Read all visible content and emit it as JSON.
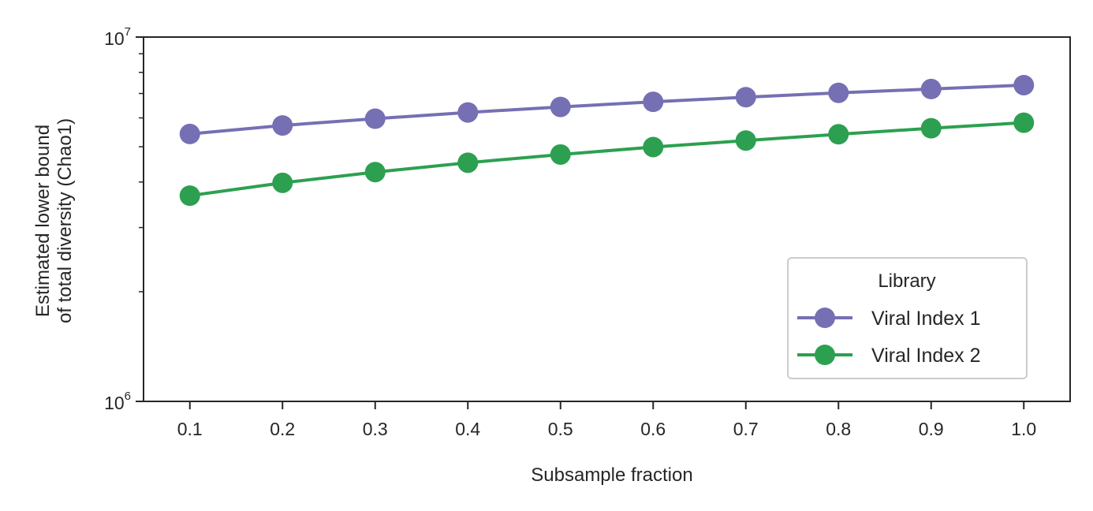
{
  "chart_data": {
    "type": "line",
    "title": "",
    "xlabel": "Subsample fraction",
    "ylabel_line1": "Estimated lower bound",
    "ylabel_line2": "of total diversity (Chao1)",
    "yscale": "log",
    "ylim": [
      1000000,
      10000000
    ],
    "xlim": [
      0.05,
      1.05
    ],
    "grid": false,
    "legend_placement": "lower right",
    "legend_title": "Library",
    "x": [
      0.1,
      0.2,
      0.3,
      0.4,
      0.5,
      0.6,
      0.7,
      0.8,
      0.9,
      1.0
    ],
    "x_ticks": [
      "0.1",
      "0.2",
      "0.3",
      "0.4",
      "0.5",
      "0.6",
      "0.7",
      "0.8",
      "0.9",
      "1.0"
    ],
    "y_ticks": [
      {
        "base": "10",
        "exp": "6",
        "value": 1000000
      },
      {
        "base": "10",
        "exp": "7",
        "value": 10000000
      }
    ],
    "series": [
      {
        "name": "Viral Index 1",
        "color": "#7570b3",
        "values": [
          5420000,
          5720000,
          5970000,
          6210000,
          6430000,
          6640000,
          6840000,
          7030000,
          7200000,
          7380000
        ]
      },
      {
        "name": "Viral Index 2",
        "color": "#2ca050",
        "values": [
          3670000,
          3980000,
          4260000,
          4520000,
          4760000,
          4990000,
          5200000,
          5410000,
          5620000,
          5820000
        ]
      }
    ]
  }
}
